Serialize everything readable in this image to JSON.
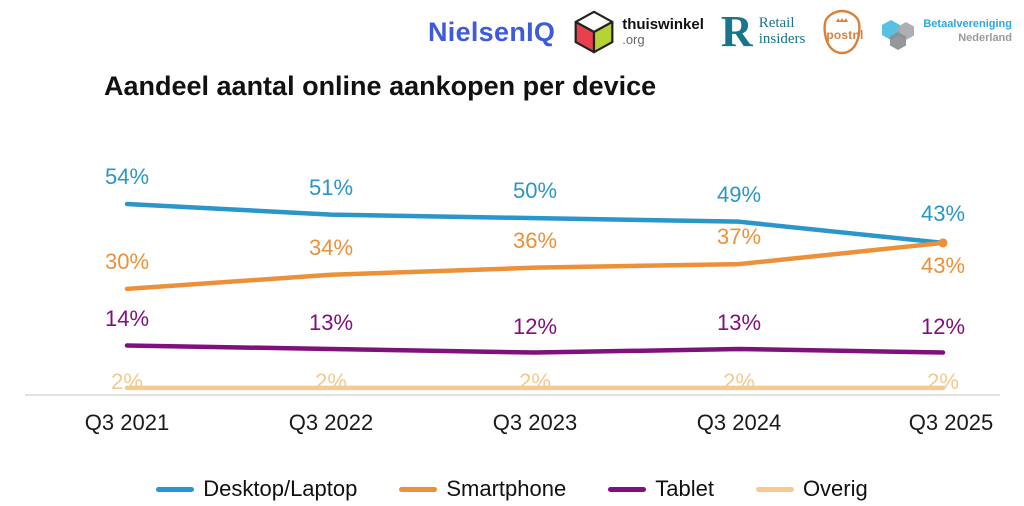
{
  "header": {
    "title": "Aandeel aantal online aankopen per device",
    "logos": {
      "nielseniq": "NielsenIQ",
      "thuiswinkel_name": "thuiswinkel",
      "thuiswinkel_org": ".org",
      "retail_r": "R",
      "retail_line1": "Retail",
      "retail_line2": "insiders",
      "postnl": "postnl",
      "betaal_line1": "Betaalvereniging",
      "betaal_line2": "Nederland"
    }
  },
  "colors": {
    "desktop_laptop": "#2B96C9",
    "smartphone": "#EC9139",
    "tablet": "#81107F",
    "overig": "#F5C98F",
    "axis_line": "#D9D9D9",
    "title_text": "#111111",
    "nielsen_blue": "#3E5BDC",
    "retail_teal": "#19758B",
    "postnl_orange": "#D9813C",
    "betaal_cyan": "#2AA9DE",
    "thuiswinkel_red": "#E8414D",
    "thuiswinkel_green": "#B5D334"
  },
  "chart_data": {
    "type": "line",
    "title": "Aandeel aantal online aankopen per device",
    "categories": [
      "Q3 2021",
      "Q3 2022",
      "Q3 2023",
      "Q3 2024",
      "Q3 2025"
    ],
    "series": [
      {
        "name": "Desktop/Laptop",
        "color": "#2B96C9",
        "values": [
          54,
          51,
          50,
          49,
          43
        ]
      },
      {
        "name": "Smartphone",
        "color": "#EC9139",
        "values": [
          30,
          34,
          36,
          37,
          43
        ]
      },
      {
        "name": "Tablet",
        "color": "#81107F",
        "values": [
          14,
          13,
          12,
          13,
          12
        ]
      },
      {
        "name": "Overig",
        "color": "#F5C98F",
        "values": [
          2,
          2,
          2,
          2,
          2
        ]
      }
    ],
    "data_labels": true,
    "unit": "%",
    "ylim": [
      0,
      60
    ],
    "grid": false,
    "xaxis_line": true,
    "legend_position": "bottom"
  }
}
